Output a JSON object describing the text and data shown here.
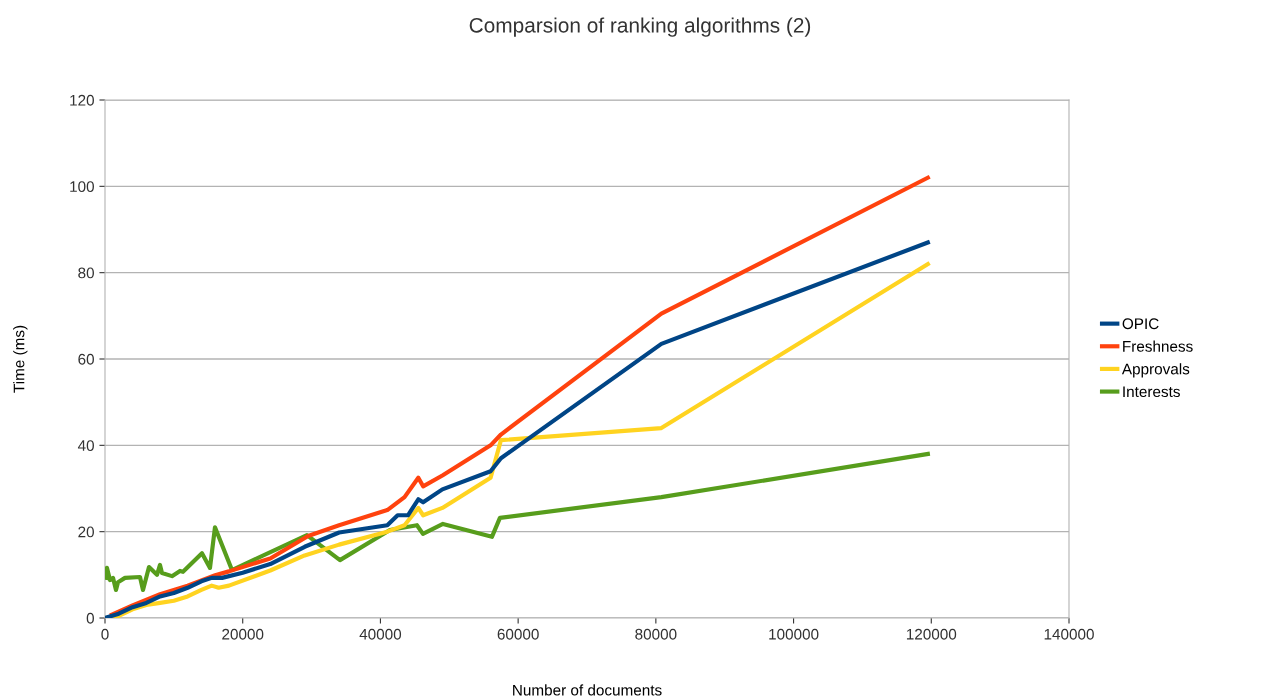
{
  "chart_data": {
    "type": "line",
    "title": "Comparsion of ranking algorithms (2)",
    "xlabel": "Number of documents",
    "ylabel": "Time (ms)",
    "xlim": [
      0,
      140000
    ],
    "xticks": [
      0,
      20000,
      40000,
      60000,
      80000,
      100000,
      120000,
      140000
    ],
    "ylim": [
      0,
      120
    ],
    "yticks": [
      0,
      20,
      40,
      60,
      80,
      100,
      120
    ],
    "grid": "y",
    "legend": "right",
    "marker": "none",
    "line_style": "solid",
    "series": [
      {
        "name": "OPIC",
        "color": "#004586",
        "x": [
          0,
          2000,
          4000,
          6000,
          8000,
          10000,
          12000,
          14000,
          15500,
          17000,
          20000,
          24000,
          29000,
          34000,
          41000,
          42500,
          44000,
          45500,
          46200,
          49000,
          56000,
          57500,
          80800,
          119500
        ],
        "values": [
          0,
          1,
          2.5,
          3.5,
          5,
          5.8,
          7,
          8.5,
          9.3,
          9.3,
          10.5,
          12.5,
          16.5,
          19.8,
          21.5,
          23.8,
          23.8,
          27.5,
          26.8,
          29.8,
          34,
          37,
          63.5,
          87
        ]
      },
      {
        "name": "Freshness",
        "color": "#ff420e",
        "x": [
          1000,
          4000,
          8000,
          12000,
          16000,
          18000,
          24000,
          29500,
          34000,
          41000,
          43500,
          45500,
          46200,
          49000,
          56000,
          57500,
          80800,
          119500
        ],
        "values": [
          0.8,
          2.9,
          5.5,
          7.5,
          9.9,
          10.8,
          13.8,
          19,
          21.5,
          25,
          28,
          32.5,
          30.5,
          33,
          40,
          42.5,
          70.5,
          102
        ]
      },
      {
        "name": "Approvals",
        "color": "#ffd320",
        "x": [
          0,
          2000,
          4000,
          6000,
          8000,
          10000,
          12000,
          14000,
          15500,
          16500,
          18000,
          24000,
          29000,
          34000,
          41000,
          43500,
          45500,
          46200,
          49000,
          56000,
          57500,
          80800,
          119500
        ],
        "values": [
          0,
          0.5,
          2,
          3,
          3.5,
          4,
          5,
          6.5,
          7.5,
          7,
          7.5,
          11,
          14.5,
          17,
          20,
          21.5,
          25.5,
          23.8,
          25.5,
          32.5,
          41.2,
          44,
          82
        ]
      },
      {
        "name": "Interests",
        "color": "#579d1c",
        "x": [
          145,
          290,
          726,
          1162,
          1597,
          1888,
          2904,
          5082,
          5518,
          6389,
          7550,
          7986,
          8276,
          9728,
          10890,
          11326,
          14084,
          15246,
          15972,
          18440,
          29330,
          34122,
          41382,
          45302,
          46174,
          49078,
          56192,
          57354,
          80800,
          119500
        ],
        "values": [
          9.3,
          11.6,
          8.8,
          9.3,
          6.5,
          8.3,
          9.3,
          9.5,
          6.5,
          11.8,
          10,
          12.3,
          10.4,
          9.7,
          10.9,
          10.7,
          15,
          11.6,
          21,
          11.1,
          19.2,
          13.4,
          20.4,
          21.5,
          19.5,
          21.8,
          18.8,
          23.2,
          28,
          38
        ]
      }
    ]
  }
}
